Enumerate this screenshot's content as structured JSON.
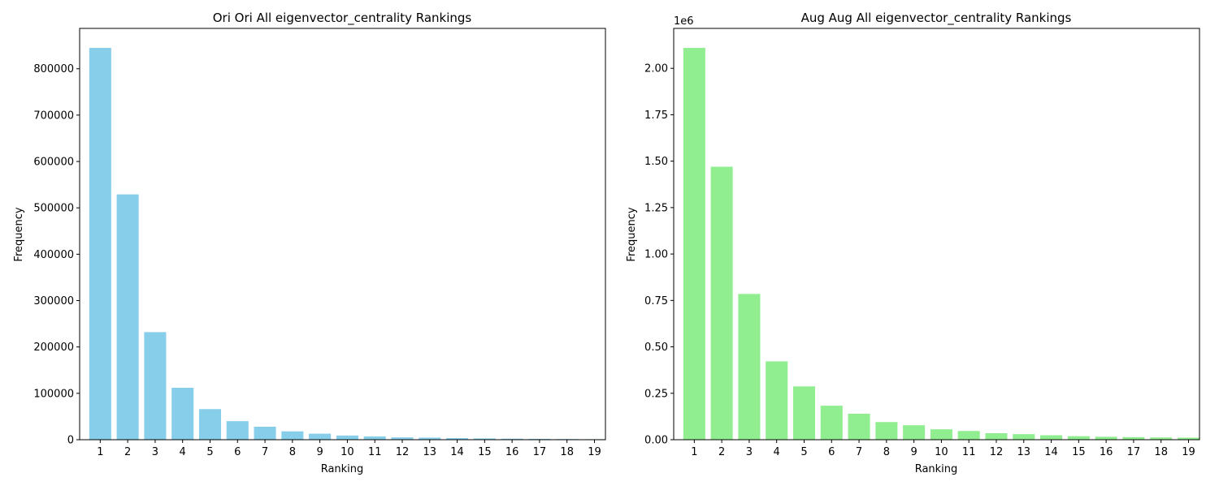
{
  "chart_data": [
    {
      "type": "bar",
      "title": "Ori Ori All eigenvector_centrality Rankings",
      "xlabel": "Ranking",
      "ylabel": "Frequency",
      "categories": [
        "1",
        "2",
        "3",
        "4",
        "5",
        "6",
        "7",
        "8",
        "9",
        "10",
        "11",
        "12",
        "13",
        "14",
        "15",
        "16",
        "17",
        "18",
        "19"
      ],
      "values": [
        845000,
        529000,
        232000,
        112000,
        66000,
        40000,
        28000,
        18000,
        13000,
        9000,
        7000,
        5000,
        4500,
        3500,
        2800,
        2200,
        1800,
        1400,
        1100
      ],
      "color": "#87ceeb",
      "ylim": [
        0,
        887000
      ],
      "yticks": [
        0,
        100000,
        200000,
        300000,
        400000,
        500000,
        600000,
        700000,
        800000
      ],
      "ytick_labels": [
        "0",
        "100000",
        "200000",
        "300000",
        "400000",
        "500000",
        "600000",
        "700000",
        "800000"
      ],
      "offset_text": "",
      "grid": false
    },
    {
      "type": "bar",
      "title": "Aug Aug All eigenvector_centrality Rankings",
      "xlabel": "Ranking",
      "ylabel": "Frequency",
      "categories": [
        "1",
        "2",
        "3",
        "4",
        "5",
        "6",
        "7",
        "8",
        "9",
        "10",
        "11",
        "12",
        "13",
        "14",
        "15",
        "16",
        "17",
        "18",
        "19"
      ],
      "values": [
        2110000,
        1470000,
        785000,
        422000,
        287000,
        183000,
        140000,
        95000,
        78000,
        56000,
        47000,
        35000,
        30000,
        24000,
        19000,
        16000,
        14000,
        12000,
        11000
      ],
      "color": "#90ee90",
      "ylim": [
        0,
        2215000
      ],
      "yticks": [
        0,
        250000,
        500000,
        750000,
        1000000,
        1250000,
        1500000,
        1750000,
        2000000
      ],
      "ytick_labels": [
        "0.00",
        "0.25",
        "0.50",
        "0.75",
        "1.00",
        "1.25",
        "1.50",
        "1.75",
        "2.00"
      ],
      "offset_text": "1e6",
      "grid": false
    }
  ]
}
